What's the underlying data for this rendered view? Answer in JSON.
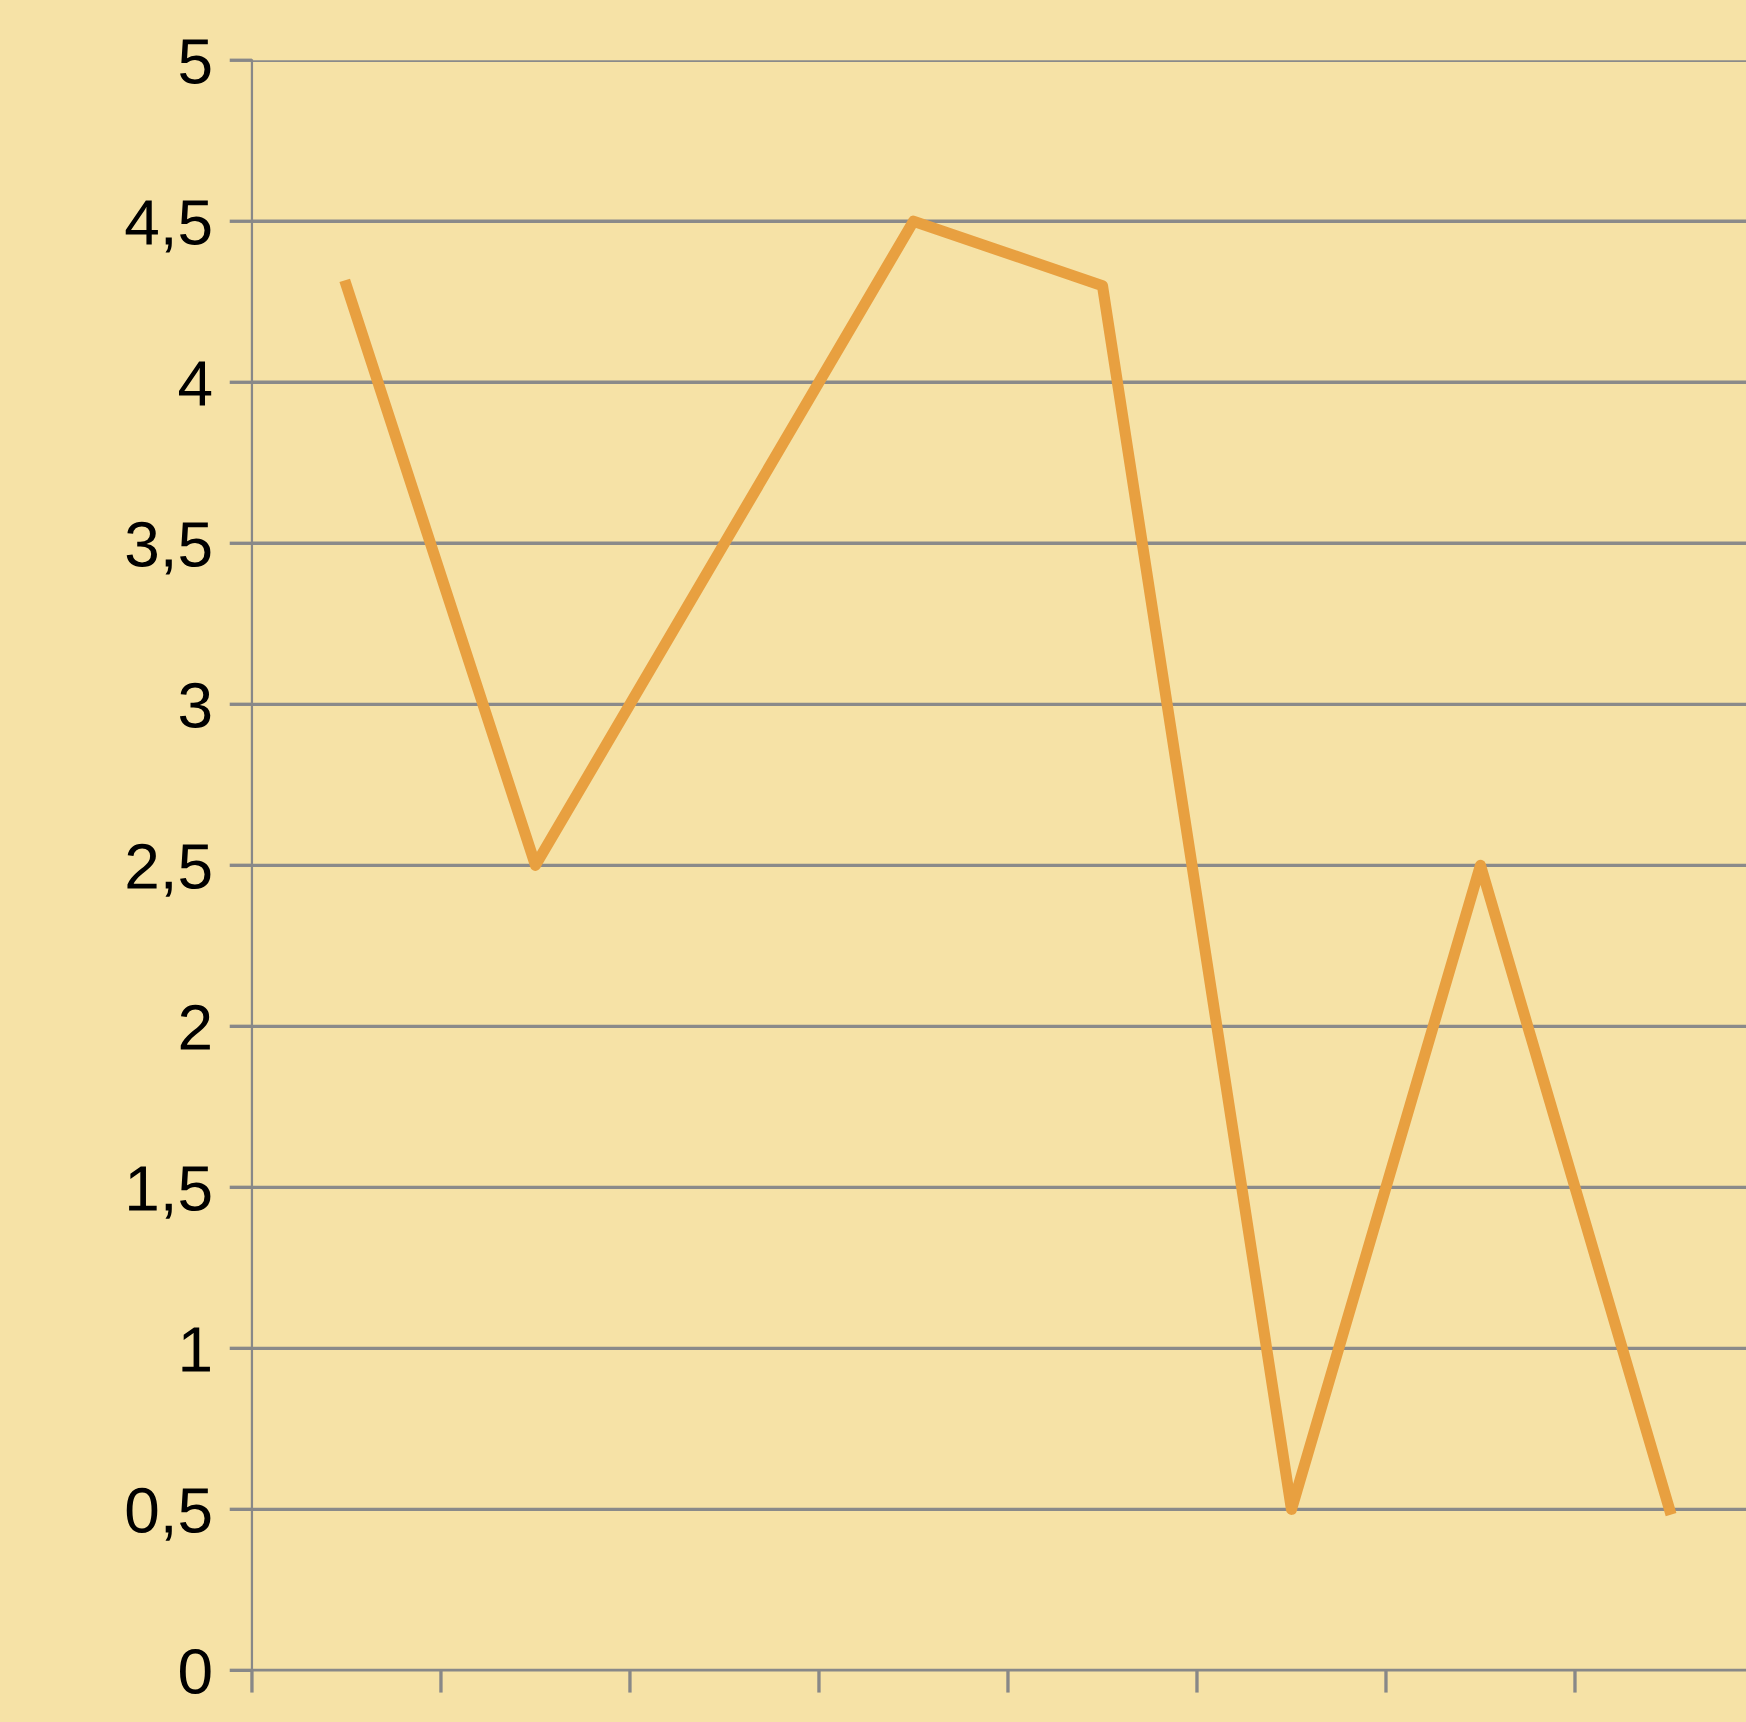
{
  "chart_data": {
    "type": "line",
    "categories": [
      null,
      null,
      null,
      null,
      null,
      null,
      null,
      null
    ],
    "series": [
      {
        "color": "#e8a040",
        "values": [
          4.3,
          2.5,
          3.5,
          4.5,
          4.3,
          0.5,
          2.5,
          0.5
        ]
      }
    ],
    "ylim": [
      0,
      5
    ],
    "yticks": [
      0,
      {
        "value": 0.5,
        "label": "0,5"
      },
      1,
      {
        "value": 1.5,
        "label": "1,5"
      },
      2,
      {
        "value": 2.5,
        "label": "2,5"
      },
      3,
      {
        "value": 3.5,
        "label": "3,5"
      },
      4,
      {
        "value": 4.5,
        "label": "4,5"
      },
      5
    ],
    "grid": "y",
    "marker": "none",
    "line_style": "solid"
  }
}
